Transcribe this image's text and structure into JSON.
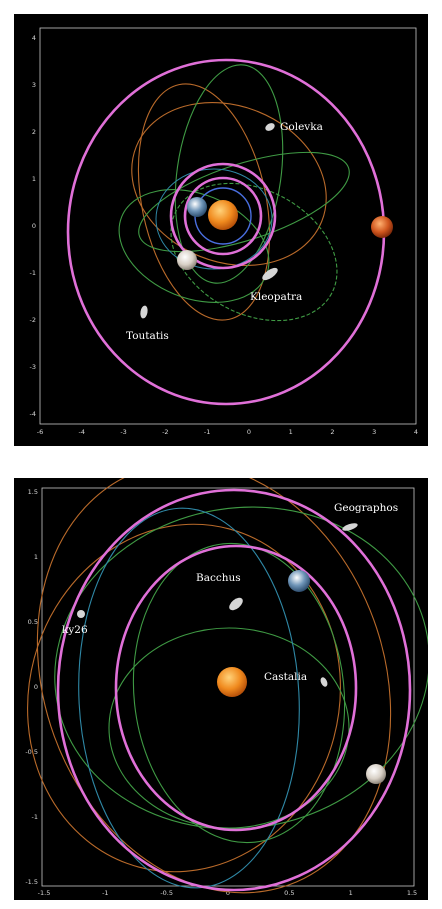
{
  "top": {
    "labels": {
      "golevka": "Golevka",
      "kleopatra": "Kleopatra",
      "toutatis": "Toutatis"
    },
    "xticks": [
      "-6",
      "-4",
      "-3",
      "-2",
      "-1",
      "0",
      "1",
      "2",
      "3",
      "4"
    ],
    "yticks": [
      "4",
      "3",
      "2",
      "1",
      "0",
      "-1",
      "-2",
      "-3",
      "-4"
    ]
  },
  "bottom": {
    "labels": {
      "geographos": "Geographos",
      "bacchus": "Bacchus",
      "ky26": "ky26",
      "castalia": "Castalia"
    },
    "xticks": [
      "-1.5",
      "-1",
      "-0.5",
      "0",
      "0.5",
      "1",
      "1.5"
    ],
    "yticks": [
      "1.5",
      "1",
      "0.5",
      "0",
      "-0.5",
      "-1",
      "-1.5"
    ]
  },
  "colors": {
    "background": "#000000",
    "planet_orbit": "#e070d8",
    "axis": "#c8c8c8",
    "orbit_green": "#3f9a44",
    "orbit_orange": "#b96a2a",
    "orbit_cyan": "#2f88a6",
    "sun": "#f08a1e"
  }
}
